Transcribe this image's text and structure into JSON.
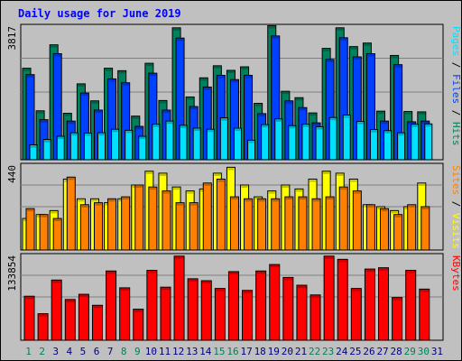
{
  "title": "Daily usage for June 2019",
  "colors": {
    "background": "#c0c0c0",
    "title": "#0000ff",
    "hits": "#00805c",
    "files": "#0040ff",
    "pages": "#00e0ff",
    "visits": "#ffff00",
    "sites": "#ff8000",
    "kbytes": "#ff0000",
    "weekend_day_label": "#00805c",
    "weekday_label": "#000080"
  },
  "chart_data": {
    "type": "bar",
    "title": "Daily usage for June 2019",
    "days": [
      "1",
      "2",
      "3",
      "4",
      "5",
      "6",
      "7",
      "8",
      "9",
      "10",
      "11",
      "12",
      "13",
      "14",
      "15",
      "16",
      "17",
      "18",
      "19",
      "20",
      "21",
      "22",
      "23",
      "24",
      "25",
      "26",
      "27",
      "28",
      "29",
      "30",
      "31"
    ],
    "weekend_days": [
      "1",
      "2",
      "8",
      "9",
      "15",
      "16",
      "22",
      "23",
      "29",
      "30"
    ],
    "panels": [
      {
        "id": "hits-files-pages",
        "max_label": "3817",
        "ymax": 3817,
        "legend": [
          {
            "text": "Hits",
            "color": "#00805c"
          },
          {
            "text": "Files",
            "color": "#0040ff"
          },
          {
            "text": "Pages",
            "color": "#00e0ff"
          }
        ],
        "series": [
          {
            "name": "Hits",
            "color": "#00805c",
            "values": [
              2580,
              1380,
              3240,
              1310,
              2140,
              1660,
              2580,
              2510,
              1230,
              2720,
              1670,
              3720,
              1770,
              2310,
              2650,
              2520,
              2620,
              1590,
              3780,
              1930,
              1750,
              1320,
              3140,
              3720,
              3190,
              3290,
              1370,
              2940,
              1360,
              1350,
              0
            ]
          },
          {
            "name": "Files",
            "color": "#0040ff",
            "values": [
              2400,
              1130,
              2990,
              1090,
              1880,
              1400,
              2280,
              2170,
              940,
              2440,
              1400,
              3430,
              1500,
              2050,
              2380,
              2260,
              2380,
              1300,
              3490,
              1660,
              1470,
              1040,
              2830,
              3440,
              2900,
              2990,
              1090,
              2680,
              1070,
              1090,
              0
            ]
          },
          {
            "name": "Pages",
            "color": "#00e0ff",
            "values": [
              420,
              570,
              660,
              760,
              750,
              760,
              860,
              830,
              660,
              1000,
              1090,
              970,
              890,
              860,
              1180,
              890,
              550,
              990,
              1150,
              960,
              1000,
              930,
              1190,
              1260,
              1080,
              850,
              820,
              760,
              1000,
              1010,
              0
            ]
          }
        ]
      },
      {
        "id": "visits-sites",
        "max_label": "440",
        "ymax": 440,
        "legend": [
          {
            "text": "Visits",
            "color": "#ffff00"
          },
          {
            "text": "Sites",
            "color": "#ff8000"
          }
        ],
        "series": [
          {
            "name": "Visits",
            "color": "#ffff00",
            "values": [
              160,
              180,
              200,
              360,
              260,
              260,
              240,
              260,
              330,
              400,
              390,
              320,
              300,
              310,
              390,
              420,
              330,
              270,
              300,
              330,
              310,
              360,
              400,
              390,
              360,
              230,
              220,
              200,
              220,
              340,
              0
            ]
          },
          {
            "name": "Sites",
            "color": "#ff8000",
            "values": [
              210,
              180,
              160,
              370,
              230,
              240,
              260,
              270,
              330,
              320,
              300,
              240,
              240,
              340,
              360,
              270,
              260,
              260,
              260,
              270,
              270,
              260,
              270,
              320,
              300,
              230,
              210,
              180,
              230,
              220,
              0
            ]
          }
        ]
      },
      {
        "id": "kbytes",
        "max_label": "133854",
        "ymax": 133854,
        "legend": [
          {
            "text": "KBytes",
            "color": "#ff0000"
          }
        ],
        "series": [
          {
            "name": "KBytes",
            "color": "#ff0000",
            "values": [
              68000,
              41000,
              93000,
              63000,
              71000,
              54000,
              107000,
              81000,
              48000,
              108000,
              82000,
              130000,
              95000,
              92000,
              80000,
              106000,
              77000,
              107000,
              117000,
              97000,
              85000,
              70000,
              130000,
              125000,
              80000,
              110000,
              112000,
              66000,
              108000,
              79000,
              0
            ]
          }
        ]
      }
    ]
  }
}
